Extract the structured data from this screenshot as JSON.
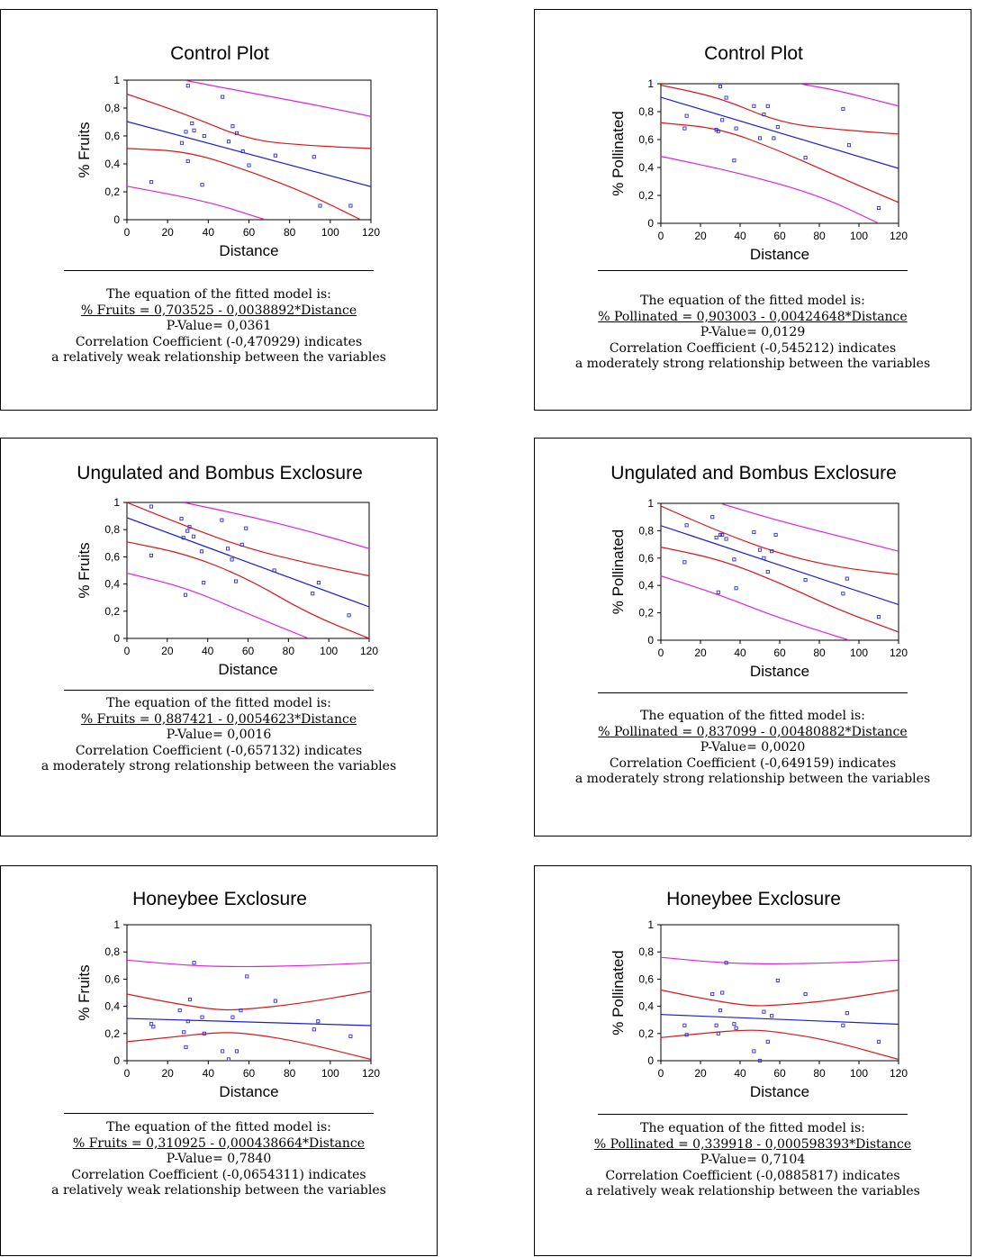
{
  "chart_data": [
    {
      "type": "scatter",
      "title": "Control Plot",
      "xlabel": "Distance",
      "ylabel": "% Fruits",
      "xlim": [
        0,
        120
      ],
      "ylim": [
        0,
        1
      ],
      "xticks": [
        "0",
        "20",
        "40",
        "60",
        "80",
        "100",
        "120"
      ],
      "yticks": [
        "0",
        "0,2",
        "0,4",
        "0,6",
        "0,8",
        "1"
      ],
      "points": [
        [
          12,
          0.27
        ],
        [
          27,
          0.55
        ],
        [
          29,
          0.63
        ],
        [
          30,
          0.42
        ],
        [
          30,
          0.96
        ],
        [
          32,
          0.69
        ],
        [
          33,
          0.64
        ],
        [
          37,
          0.25
        ],
        [
          38,
          0.6
        ],
        [
          47,
          0.88
        ],
        [
          50,
          0.56
        ],
        [
          52,
          0.67
        ],
        [
          54,
          0.62
        ],
        [
          57,
          0.49
        ],
        [
          60,
          0.39
        ],
        [
          73,
          0.46
        ],
        [
          92,
          0.45
        ],
        [
          95,
          0.1
        ],
        [
          110,
          0.1
        ]
      ],
      "fit": {
        "intercept": 0.703525,
        "slope": -0.0038892
      },
      "confidence_band": {
        "lower": [
          [
            0,
            0.51
          ],
          [
            30,
            0.49
          ],
          [
            60,
            0.35
          ],
          [
            90,
            0.18
          ],
          [
            115,
            0.0
          ]
        ],
        "upper": [
          [
            0,
            0.9
          ],
          [
            30,
            0.75
          ],
          [
            60,
            0.57
          ],
          [
            90,
            0.53
          ],
          [
            120,
            0.51
          ]
        ]
      },
      "prediction_band": {
        "lower": [
          [
            0,
            0.24
          ],
          [
            40,
            0.13
          ],
          [
            68,
            0.0
          ]
        ],
        "upper": [
          [
            28,
            1.0
          ],
          [
            60,
            0.91
          ],
          [
            90,
            0.83
          ],
          [
            120,
            0.74
          ]
        ]
      },
      "text": {
        "line1": "The equation of the fitted model is:",
        "equation": "% Fruits = 0,703525 - 0,0038892*Distance",
        "pvalue": "P-Value= 0,0361",
        "corr": "Correlation Coefficient (-0,470929) indicates",
        "strength": "a relatively weak relationship between the variables"
      }
    },
    {
      "type": "scatter",
      "title": "Control Plot",
      "xlabel": "Distance",
      "ylabel": "% Pollinated",
      "xlim": [
        0,
        120
      ],
      "ylim": [
        0,
        1
      ],
      "xticks": [
        "0",
        "20",
        "40",
        "60",
        "80",
        "100",
        "120"
      ],
      "yticks": [
        "0",
        "0,2",
        "0,4",
        "0,6",
        "0,8",
        "1"
      ],
      "points": [
        [
          12,
          0.68
        ],
        [
          13,
          0.77
        ],
        [
          28,
          0.67
        ],
        [
          29,
          0.66
        ],
        [
          30,
          0.98
        ],
        [
          31,
          0.74
        ],
        [
          33,
          0.9
        ],
        [
          37,
          0.45
        ],
        [
          38,
          0.68
        ],
        [
          47,
          0.84
        ],
        [
          50,
          0.61
        ],
        [
          52,
          0.78
        ],
        [
          54,
          0.84
        ],
        [
          57,
          0.61
        ],
        [
          59,
          0.69
        ],
        [
          73,
          0.47
        ],
        [
          92,
          0.82
        ],
        [
          95,
          0.56
        ],
        [
          110,
          0.11
        ]
      ],
      "fit": {
        "intercept": 0.903003,
        "slope": -0.00424648
      },
      "confidence_band": {
        "lower": [
          [
            0,
            0.72
          ],
          [
            30,
            0.68
          ],
          [
            60,
            0.52
          ],
          [
            90,
            0.33
          ],
          [
            120,
            0.15
          ]
        ],
        "upper": [
          [
            0,
            0.99
          ],
          [
            30,
            0.9
          ],
          [
            60,
            0.72
          ],
          [
            90,
            0.67
          ],
          [
            120,
            0.64
          ]
        ]
      },
      "prediction_band": {
        "lower": [
          [
            0,
            0.48
          ],
          [
            40,
            0.36
          ],
          [
            80,
            0.2
          ],
          [
            110,
            0.0
          ]
        ],
        "upper": [
          [
            70,
            1.0
          ],
          [
            90,
            0.95
          ],
          [
            120,
            0.84
          ]
        ]
      },
      "text": {
        "line1": "The equation of the fitted model is:",
        "equation": "% Pollinated = 0,903003 - 0,00424648*Distance",
        "pvalue": "P-Value= 0,0129",
        "corr": "Correlation Coefficient (-0,545212) indicates",
        "strength": "a moderately strong relationship between the variables"
      }
    },
    {
      "type": "scatter",
      "title": "Ungulated and Bombus Exclosure",
      "xlabel": "Distance",
      "ylabel": "% Fruits",
      "xlim": [
        0,
        120
      ],
      "ylim": [
        0,
        1
      ],
      "xticks": [
        "0",
        "20",
        "40",
        "60",
        "80",
        "100",
        "120"
      ],
      "yticks": [
        "0",
        "0,2",
        "0,4",
        "0,6",
        "0,8",
        "1"
      ],
      "points": [
        [
          12,
          0.61
        ],
        [
          12,
          0.97
        ],
        [
          27,
          0.88
        ],
        [
          28,
          0.74
        ],
        [
          29,
          0.32
        ],
        [
          30,
          0.79
        ],
        [
          31,
          0.82
        ],
        [
          33,
          0.75
        ],
        [
          37,
          0.64
        ],
        [
          38,
          0.41
        ],
        [
          47,
          0.87
        ],
        [
          50,
          0.66
        ],
        [
          52,
          0.58
        ],
        [
          54,
          0.42
        ],
        [
          57,
          0.69
        ],
        [
          59,
          0.81
        ],
        [
          73,
          0.5
        ],
        [
          92,
          0.33
        ],
        [
          95,
          0.41
        ],
        [
          110,
          0.17
        ]
      ],
      "fit": {
        "intercept": 0.887421,
        "slope": -0.0054623
      },
      "confidence_band": {
        "lower": [
          [
            0,
            0.71
          ],
          [
            30,
            0.62
          ],
          [
            60,
            0.44
          ],
          [
            90,
            0.18
          ],
          [
            120,
            0.0
          ]
        ],
        "upper": [
          [
            0,
            1.0
          ],
          [
            30,
            0.82
          ],
          [
            60,
            0.66
          ],
          [
            90,
            0.55
          ],
          [
            120,
            0.46
          ]
        ]
      },
      "prediction_band": {
        "lower": [
          [
            0,
            0.48
          ],
          [
            30,
            0.37
          ],
          [
            60,
            0.18
          ],
          [
            90,
            0.0
          ]
        ],
        "upper": [
          [
            28,
            1.0
          ],
          [
            60,
            0.9
          ],
          [
            90,
            0.79
          ],
          [
            120,
            0.66
          ]
        ]
      },
      "text": {
        "line1": "The equation of the fitted model is:",
        "equation": "% Fruits = 0,887421 - 0,0054623*Distance",
        "pvalue": "P-Value= 0,0016",
        "corr": "Correlation Coefficient (-0,657132) indicates",
        "strength": "a moderately strong relationship between the variables"
      }
    },
    {
      "type": "scatter",
      "title": "Ungulated and Bombus Exclosure",
      "xlabel": "Distance",
      "ylabel": "% Pollinated",
      "xlim": [
        0,
        120
      ],
      "ylim": [
        0,
        1
      ],
      "xticks": [
        "0",
        "20",
        "40",
        "60",
        "80",
        "100",
        "120"
      ],
      "yticks": [
        "0",
        "0,2",
        "0,4",
        "0,6",
        "0,8",
        "1"
      ],
      "points": [
        [
          12,
          0.57
        ],
        [
          13,
          0.84
        ],
        [
          26,
          0.9
        ],
        [
          28,
          0.75
        ],
        [
          29,
          0.35
        ],
        [
          30,
          0.77
        ],
        [
          31,
          0.77
        ],
        [
          33,
          0.74
        ],
        [
          37,
          0.59
        ],
        [
          38,
          0.38
        ],
        [
          47,
          0.79
        ],
        [
          50,
          0.66
        ],
        [
          52,
          0.6
        ],
        [
          54,
          0.5
        ],
        [
          56,
          0.65
        ],
        [
          58,
          0.77
        ],
        [
          73,
          0.44
        ],
        [
          92,
          0.34
        ],
        [
          94,
          0.45
        ],
        [
          110,
          0.17
        ]
      ],
      "fit": {
        "intercept": 0.837099,
        "slope": -0.00480882
      },
      "confidence_band": {
        "lower": [
          [
            0,
            0.68
          ],
          [
            30,
            0.59
          ],
          [
            60,
            0.42
          ],
          [
            90,
            0.22
          ],
          [
            120,
            0.06
          ]
        ],
        "upper": [
          [
            0,
            0.98
          ],
          [
            30,
            0.79
          ],
          [
            60,
            0.63
          ],
          [
            90,
            0.53
          ],
          [
            120,
            0.48
          ]
        ]
      },
      "prediction_band": {
        "lower": [
          [
            0,
            0.47
          ],
          [
            30,
            0.33
          ],
          [
            60,
            0.16
          ],
          [
            95,
            0.0
          ]
        ],
        "upper": [
          [
            30,
            1.0
          ],
          [
            60,
            0.87
          ],
          [
            90,
            0.76
          ],
          [
            120,
            0.65
          ]
        ]
      },
      "text": {
        "line1": "The equation of the fitted model is:",
        "equation": "% Pollinated = 0,837099 - 0,00480882*Distance",
        "pvalue": "P-Value= 0,0020",
        "corr": "Correlation Coefficient (-0,649159) indicates",
        "strength": "a moderately strong relationship between the variables"
      }
    },
    {
      "type": "scatter",
      "title": "Honeybee Exclosure",
      "xlabel": "Distance",
      "ylabel": "% Fruits",
      "xlim": [
        0,
        120
      ],
      "ylim": [
        0,
        1
      ],
      "xticks": [
        "0",
        "20",
        "40",
        "60",
        "80",
        "100",
        "120"
      ],
      "yticks": [
        "0",
        "0,2",
        "0,4",
        "0,6",
        "0,8",
        "1"
      ],
      "points": [
        [
          12,
          0.27
        ],
        [
          13,
          0.25
        ],
        [
          26,
          0.37
        ],
        [
          28,
          0.21
        ],
        [
          29,
          0.1
        ],
        [
          30,
          0.29
        ],
        [
          31,
          0.45
        ],
        [
          33,
          0.72
        ],
        [
          37,
          0.32
        ],
        [
          38,
          0.2
        ],
        [
          47,
          0.07
        ],
        [
          50,
          0.01
        ],
        [
          52,
          0.32
        ],
        [
          54,
          0.07
        ],
        [
          56,
          0.37
        ],
        [
          59,
          0.62
        ],
        [
          73,
          0.44
        ],
        [
          92,
          0.23
        ],
        [
          94,
          0.29
        ],
        [
          110,
          0.18
        ]
      ],
      "fit": {
        "intercept": 0.310925,
        "slope": -0.000438664
      },
      "confidence_band": {
        "lower": [
          [
            0,
            0.14
          ],
          [
            20,
            0.17
          ],
          [
            45,
            0.21
          ],
          [
            60,
            0.2
          ],
          [
            85,
            0.14
          ],
          [
            120,
            0.01
          ]
        ],
        "upper": [
          [
            0,
            0.49
          ],
          [
            20,
            0.43
          ],
          [
            45,
            0.37
          ],
          [
            60,
            0.38
          ],
          [
            85,
            0.42
          ],
          [
            120,
            0.51
          ]
        ]
      },
      "prediction_band": {
        "lower": [],
        "upper": [
          [
            0,
            0.74
          ],
          [
            30,
            0.7
          ],
          [
            55,
            0.69
          ],
          [
            90,
            0.7
          ],
          [
            120,
            0.72
          ]
        ]
      },
      "text": {
        "line1": "The equation of the fitted model is:",
        "equation": "% Fruits = 0,310925 - 0,000438664*Distance",
        "pvalue": "P-Value= 0,7840",
        "corr": "Correlation Coefficient (-0,0654311) indicates",
        "strength": "a relatively weak relationship between the variables"
      }
    },
    {
      "type": "scatter",
      "title": "Honeybee Exclosure",
      "xlabel": "Distance",
      "ylabel": "% Pollinated",
      "xlim": [
        0,
        120
      ],
      "ylim": [
        0,
        1
      ],
      "xticks": [
        "0",
        "20",
        "40",
        "60",
        "80",
        "100",
        "120"
      ],
      "yticks": [
        "0",
        "0,2",
        "0,4",
        "0,6",
        "0,8",
        "1"
      ],
      "points": [
        [
          12,
          0.26
        ],
        [
          13,
          0.19
        ],
        [
          26,
          0.49
        ],
        [
          28,
          0.26
        ],
        [
          29,
          0.2
        ],
        [
          30,
          0.37
        ],
        [
          31,
          0.5
        ],
        [
          33,
          0.72
        ],
        [
          37,
          0.27
        ],
        [
          38,
          0.24
        ],
        [
          47,
          0.07
        ],
        [
          50,
          0.0
        ],
        [
          52,
          0.36
        ],
        [
          54,
          0.14
        ],
        [
          56,
          0.33
        ],
        [
          59,
          0.59
        ],
        [
          73,
          0.49
        ],
        [
          92,
          0.26
        ],
        [
          94,
          0.35
        ],
        [
          110,
          0.14
        ]
      ],
      "fit": {
        "intercept": 0.339918,
        "slope": -0.000598393
      },
      "confidence_band": {
        "lower": [
          [
            0,
            0.17
          ],
          [
            20,
            0.2
          ],
          [
            45,
            0.23
          ],
          [
            60,
            0.21
          ],
          [
            85,
            0.15
          ],
          [
            120,
            0.01
          ]
        ],
        "upper": [
          [
            0,
            0.52
          ],
          [
            20,
            0.46
          ],
          [
            45,
            0.4
          ],
          [
            60,
            0.41
          ],
          [
            85,
            0.44
          ],
          [
            120,
            0.52
          ]
        ]
      },
      "prediction_band": {
        "lower": [],
        "upper": [
          [
            0,
            0.76
          ],
          [
            30,
            0.72
          ],
          [
            55,
            0.71
          ],
          [
            90,
            0.72
          ],
          [
            120,
            0.74
          ]
        ]
      },
      "text": {
        "line1": "The equation of the fitted model is:",
        "equation": "% Pollinated = 0,339918 - 0,000598393*Distance",
        "pvalue": "P-Value= 0,7104",
        "corr": "Correlation Coefficient (-0,0885817) indicates",
        "strength": "a relatively weak relationship between the variables"
      }
    }
  ],
  "colors": {
    "points": "#2b2bd6",
    "fit_line": "#1c1cd9",
    "confidence_band": "#e01414",
    "prediction_band": "#e21fe0",
    "axis": "#000000"
  }
}
